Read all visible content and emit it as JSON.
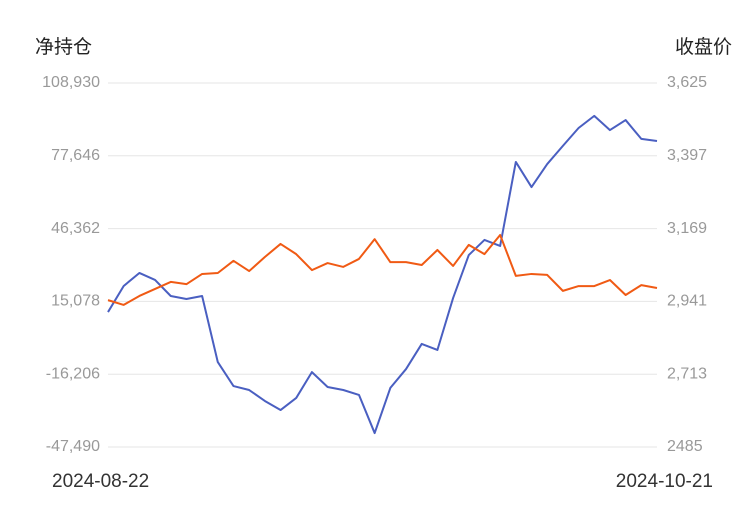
{
  "chart_data": {
    "type": "line",
    "y_label": "净持仓",
    "y2_label": "收盘价",
    "categories": [
      "2024-08-22",
      null,
      null,
      null,
      null,
      null,
      null,
      null,
      null,
      null,
      null,
      null,
      null,
      null,
      null,
      null,
      null,
      null,
      null,
      null,
      null,
      null,
      null,
      null,
      null,
      null,
      null,
      null,
      null,
      null,
      null,
      null,
      null,
      null,
      null,
      "2024-10-21"
    ],
    "ylim": [
      -47490,
      108930
    ],
    "yticks": [
      {
        "value": 108930,
        "label": "108,930"
      },
      {
        "value": 77646,
        "label": "77,646"
      },
      {
        "value": 46362,
        "label": "46,362"
      },
      {
        "value": 15078,
        "label": "15,078"
      },
      {
        "value": -16206,
        "label": "-16,206"
      },
      {
        "value": -47490,
        "label": "-47,490"
      }
    ],
    "y2lim": [
      2485,
      3625
    ],
    "y2ticks": [
      {
        "value": 3625,
        "label": "3,625"
      },
      {
        "value": 3397,
        "label": "3,397"
      },
      {
        "value": 3169,
        "label": "3,169"
      },
      {
        "value": 2941,
        "label": "2,941"
      },
      {
        "value": 2713,
        "label": "2,713"
      },
      2485
    ],
    "grid": true,
    "series": [
      {
        "color": "#4a5fc1",
        "values": [
          10500,
          21700,
          27300,
          24300,
          17400,
          16100,
          17400,
          -11000,
          -21300,
          -23000,
          -27700,
          -31600,
          -26400,
          -15300,
          -21700,
          -23000,
          -25100,
          -41500,
          -22100,
          -14000,
          -3200,
          -5800,
          16500,
          35000,
          41500,
          38900,
          75000,
          64200,
          74100,
          81900,
          89600,
          94800,
          88700,
          93000,
          84900,
          84000
        ]
      },
      {
        "color": "#f05a14",
        "axis": "y2",
        "values": [
          2945,
          2930,
          2958,
          2980,
          3002,
          2995,
          3027,
          3030,
          3068,
          3036,
          3080,
          3121,
          3089,
          3039,
          3061,
          3049,
          3074,
          3136,
          3064,
          3064,
          3055,
          3102,
          3052,
          3118,
          3089,
          3149,
          3021,
          3027,
          3024,
          2974,
          2989,
          2989,
          3008,
          2961,
          2992,
          2983
        ]
      }
    ]
  }
}
